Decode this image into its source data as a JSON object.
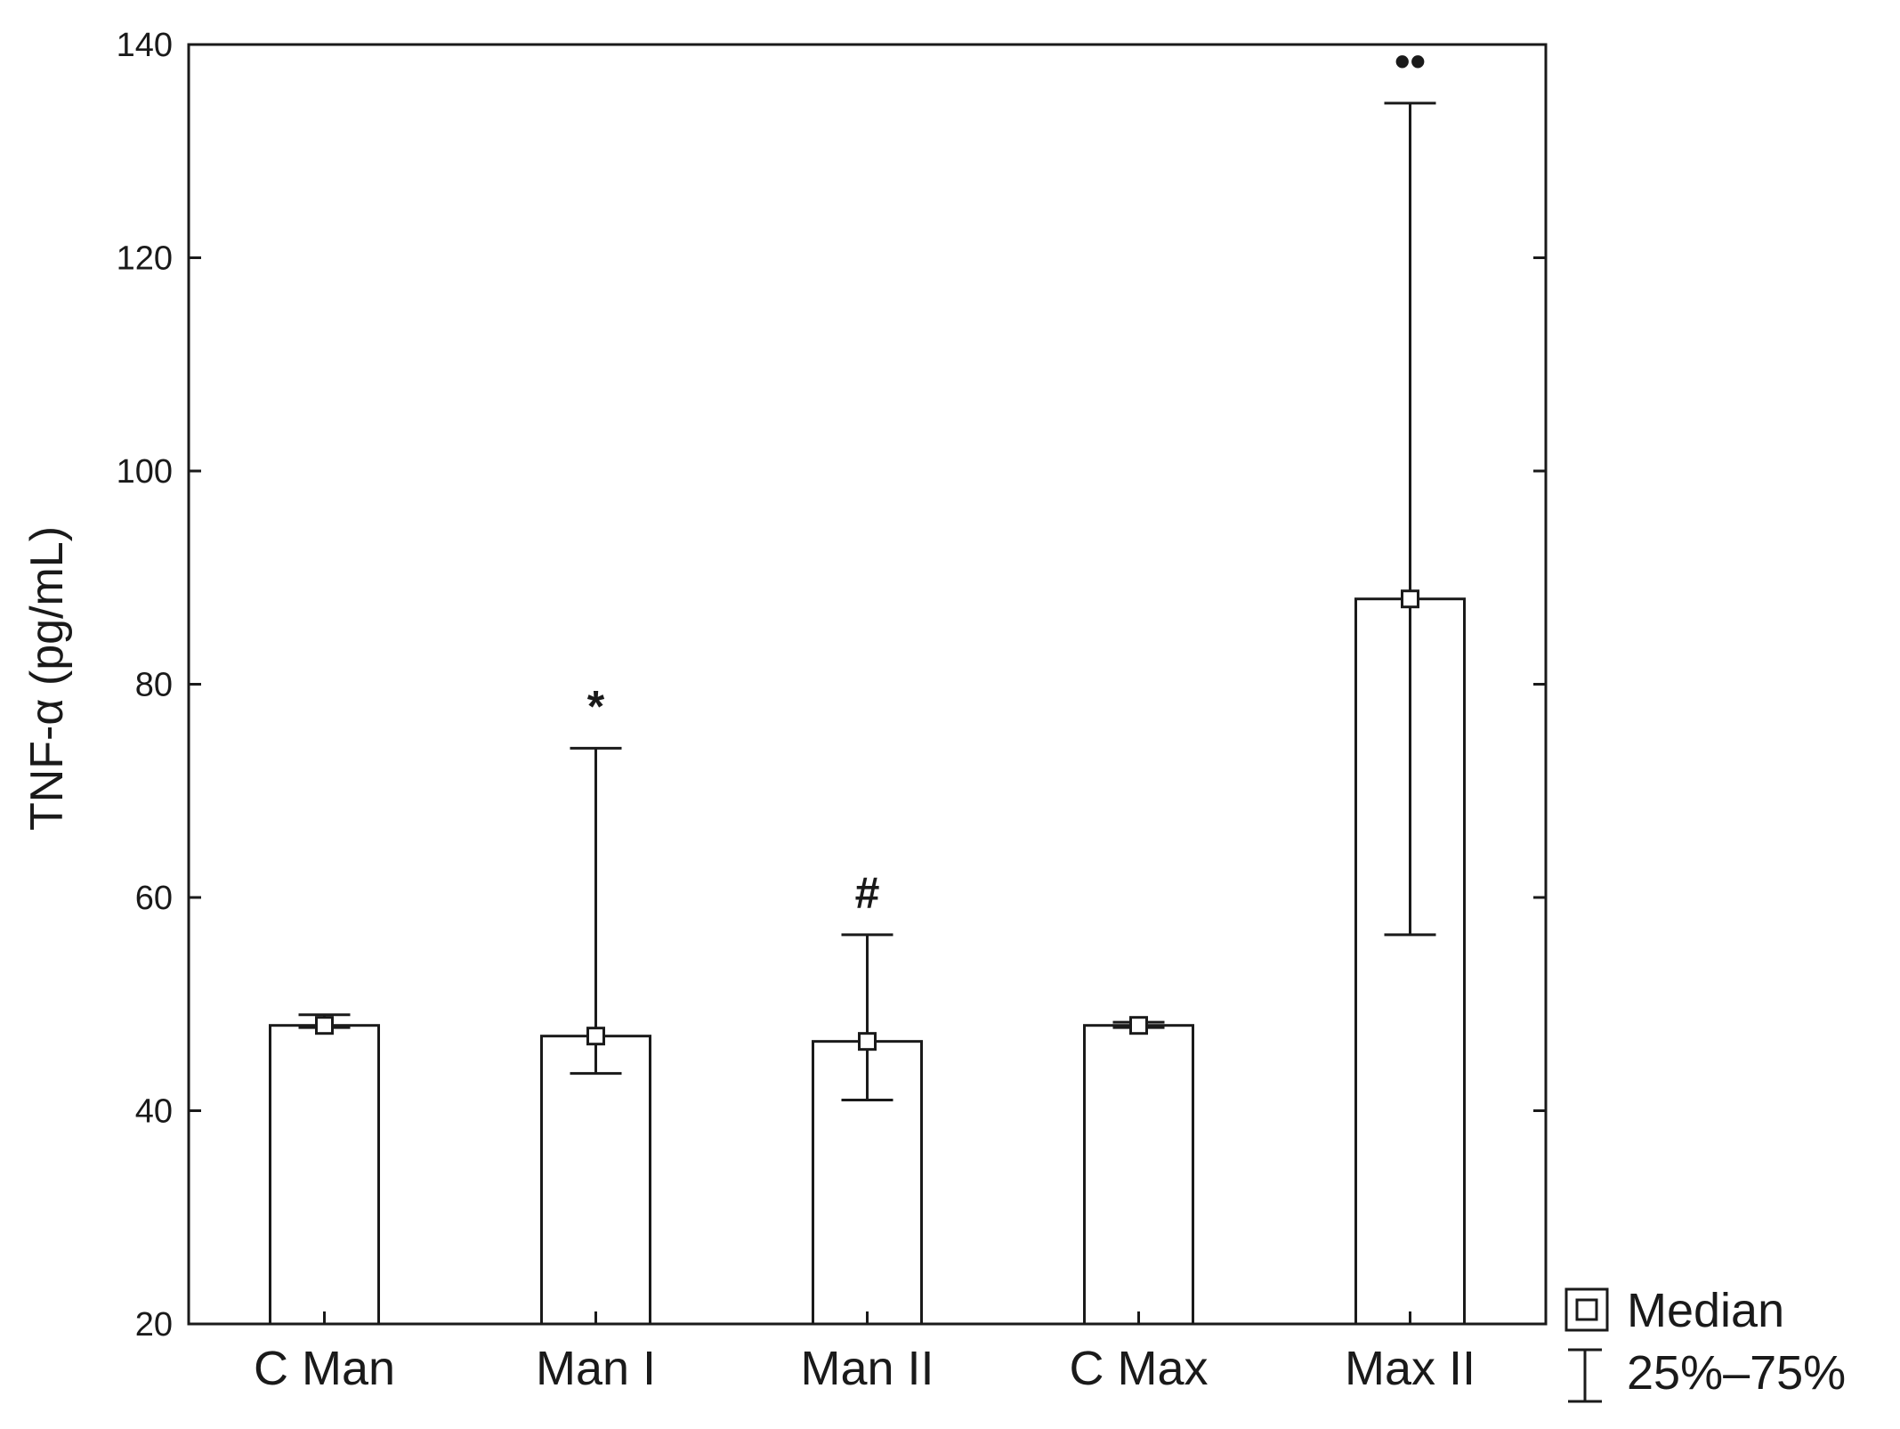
{
  "chart_data": {
    "type": "bar",
    "title": "",
    "xlabel": "",
    "ylabel": "TNF-α (pg/mL)",
    "ylim": [
      20,
      140
    ],
    "yticks": [
      20,
      40,
      60,
      80,
      100,
      120,
      140
    ],
    "categories": [
      "C Man",
      "Man I",
      "Man II",
      "C Max",
      "Max II"
    ],
    "median": [
      48,
      47,
      46.5,
      48,
      88
    ],
    "q25": [
      47.8,
      43.5,
      41,
      47.8,
      56.5
    ],
    "q75": [
      49,
      74,
      56.5,
      48.3,
      134.5
    ],
    "annotations": [
      "",
      "*",
      "#",
      "",
      "••"
    ],
    "legend": {
      "position": "bottom-right",
      "median_label": "Median",
      "range_label": "25%–75%"
    },
    "grid": false,
    "colors": {
      "bar_fill": "#ffffff",
      "stroke": "#1a1a1a"
    }
  }
}
